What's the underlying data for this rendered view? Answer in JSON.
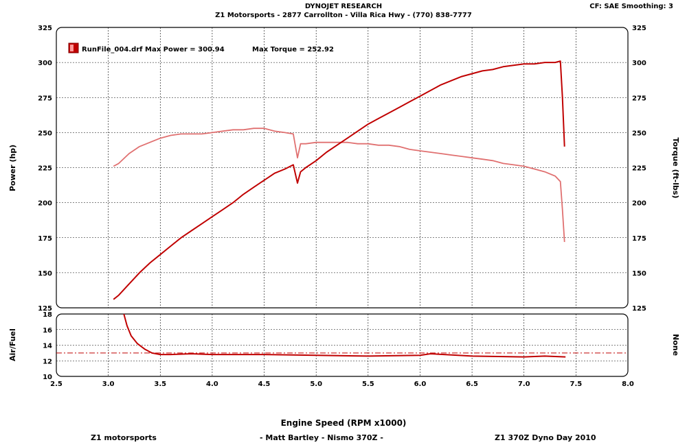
{
  "header": {
    "title": "DYNOJET RESEARCH",
    "subtitle": "Z1 Motorsports - 2877 Carrollton - Villa Rica Hwy - (770) 838-7777",
    "settings": "CF: SAE   Smoothing: 3"
  },
  "footer": {
    "left": "Z1 motorsports",
    "middle": "- Matt Bartley  -  Nismo 370Z -",
    "right": "Z1 370Z Dyno Day 2010"
  },
  "chart_data": [
    {
      "type": "line",
      "legend": {
        "label": "RunFile_004.drf Max Power = 300.94",
        "torque_label": "Max Torque = 252.92",
        "placement": "top-left"
      },
      "xlabel": "Engine Speed (RPM x1000)",
      "ylabel": "Power (hp)",
      "y2label": "Torque (ft-lbs)",
      "xlim": [
        2.5,
        8.0
      ],
      "ylim": [
        125,
        325
      ],
      "y2lim": [
        125,
        325
      ],
      "xticks": [
        "2.5",
        "3.0",
        "3.5",
        "4.0",
        "4.5",
        "5.0",
        "5.5",
        "6.0",
        "6.5",
        "7.0",
        "7.5",
        "8.0"
      ],
      "yticks": [
        "125",
        "150",
        "175",
        "200",
        "225",
        "250",
        "275",
        "300",
        "325"
      ],
      "grid": true,
      "colors": {
        "power": "#c00000",
        "torque": "#e07070"
      },
      "series": [
        {
          "name": "Power",
          "x": [
            3.05,
            3.1,
            3.2,
            3.3,
            3.4,
            3.5,
            3.6,
            3.7,
            3.8,
            3.9,
            4.0,
            4.1,
            4.2,
            4.3,
            4.4,
            4.5,
            4.6,
            4.7,
            4.78,
            4.82,
            4.85,
            4.9,
            5.0,
            5.1,
            5.2,
            5.3,
            5.4,
            5.5,
            5.6,
            5.7,
            5.8,
            5.9,
            6.0,
            6.1,
            6.2,
            6.3,
            6.4,
            6.5,
            6.6,
            6.7,
            6.8,
            6.9,
            7.0,
            7.1,
            7.2,
            7.3,
            7.35,
            7.37,
            7.39
          ],
          "values": [
            131,
            134,
            142,
            150,
            157,
            163,
            169,
            175,
            180,
            185,
            190,
            195,
            200,
            206,
            211,
            216,
            221,
            224,
            227,
            214,
            222,
            225,
            230,
            236,
            241,
            246,
            251,
            256,
            260,
            264,
            268,
            272,
            276,
            280,
            284,
            287,
            290,
            292,
            294,
            295,
            297,
            298,
            299,
            299,
            300,
            300,
            301,
            275,
            240
          ]
        },
        {
          "name": "Torque",
          "x": [
            3.05,
            3.1,
            3.2,
            3.3,
            3.4,
            3.5,
            3.6,
            3.7,
            3.8,
            3.9,
            4.0,
            4.1,
            4.2,
            4.3,
            4.4,
            4.5,
            4.6,
            4.7,
            4.78,
            4.82,
            4.85,
            4.9,
            5.0,
            5.1,
            5.2,
            5.3,
            5.4,
            5.5,
            5.6,
            5.7,
            5.8,
            5.9,
            6.0,
            6.1,
            6.2,
            6.3,
            6.4,
            6.5,
            6.6,
            6.7,
            6.8,
            6.9,
            7.0,
            7.1,
            7.2,
            7.3,
            7.35,
            7.37,
            7.39
          ],
          "values": [
            226,
            228,
            235,
            240,
            243,
            246,
            248,
            249,
            249,
            249,
            250,
            251,
            252,
            252,
            253,
            253,
            251,
            250,
            249,
            232,
            242,
            242,
            243,
            243,
            243,
            243,
            242,
            242,
            241,
            241,
            240,
            238,
            237,
            236,
            235,
            234,
            233,
            232,
            231,
            230,
            228,
            227,
            226,
            224,
            222,
            219,
            215,
            195,
            172
          ]
        }
      ]
    },
    {
      "type": "line",
      "xlabel": "Engine Speed (RPM x1000)",
      "ylabel": "Air/Fuel",
      "y2label": "None",
      "xlim": [
        2.5,
        8.0
      ],
      "ylim": [
        10,
        18
      ],
      "xticks": [
        "2.5",
        "3.0",
        "3.5",
        "4.0",
        "4.5",
        "5.0",
        "5.5",
        "6.0",
        "6.5",
        "7.0",
        "7.5",
        "8.0"
      ],
      "yticks": [
        "10",
        "12",
        "14",
        "16",
        "18"
      ],
      "grid": true,
      "reference_line": 13.0,
      "colors": {
        "afr": "#c00000"
      },
      "series": [
        {
          "name": "Air/Fuel",
          "x": [
            3.15,
            3.18,
            3.22,
            3.28,
            3.35,
            3.42,
            3.5,
            3.6,
            3.8,
            4.0,
            4.5,
            5.0,
            5.5,
            6.0,
            6.1,
            6.5,
            7.0,
            7.2,
            7.4
          ],
          "values": [
            18.0,
            16.5,
            15.2,
            14.2,
            13.5,
            13.0,
            12.8,
            12.8,
            12.9,
            12.8,
            12.8,
            12.7,
            12.6,
            12.7,
            12.9,
            12.6,
            12.5,
            12.6,
            12.5
          ]
        }
      ]
    }
  ]
}
